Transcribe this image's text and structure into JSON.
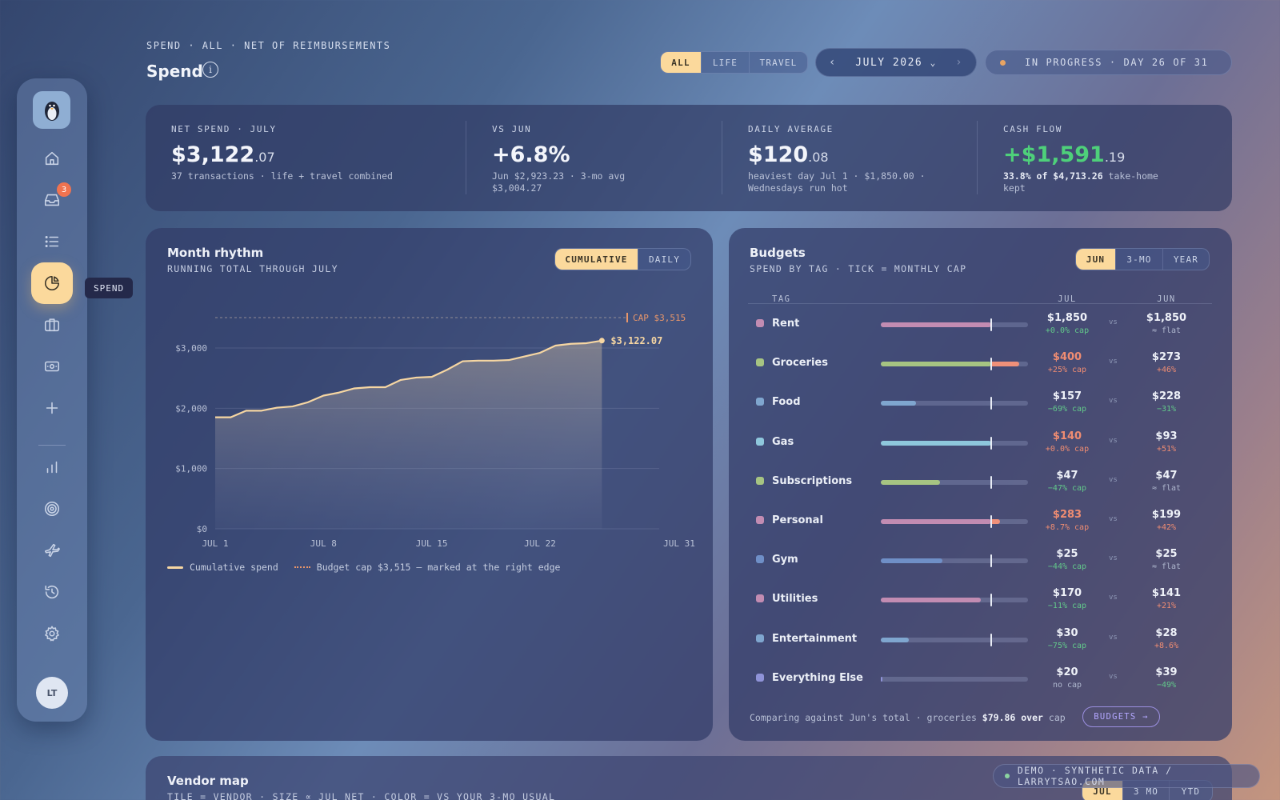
{
  "sidebar": {
    "inbox_badge": "3",
    "tooltip": "SPEND",
    "avatar_initials": "LT",
    "icons": [
      "penguin-logo-icon",
      "home-icon",
      "inbox-icon",
      "list-icon",
      "pie-chart-icon",
      "briefcase-icon",
      "cash-icon",
      "plus-icon",
      "bar-chart-icon",
      "target-icon",
      "plane-icon",
      "history-icon",
      "gear-icon"
    ]
  },
  "header": {
    "eyebrow": "SPEND · ALL · NET OF REIMBURSEMENTS",
    "title": "Spend",
    "info": "i",
    "scope_tabs": [
      "ALL",
      "LIFE",
      "TRAVEL"
    ],
    "scope_selected": "ALL",
    "month_prev": "‹",
    "month": "JULY 2026",
    "month_caret": "⌄",
    "month_next": "›",
    "status": "IN PROGRESS · DAY 26 OF 31"
  },
  "stats": {
    "net": {
      "label": "NET SPEND · JULY",
      "whole": "$3,122",
      "cents": ".07",
      "sub": "37 transactions · life + travel combined"
    },
    "vs": {
      "label": "VS JUN",
      "value": "+6.8%",
      "sub1": "Jun $2,923.23 · 3-mo avg",
      "sub2": "$3,004.27"
    },
    "daily": {
      "label": "DAILY AVERAGE",
      "whole": "$120",
      "cents": ".08",
      "sub1": "heaviest day Jul 1 · $1,850.00 ·",
      "sub2": "Wednesdays run hot"
    },
    "cash": {
      "label": "CASH FLOW",
      "whole": "+$1,591",
      "cents": ".19",
      "sub_bold": "33.8% of $4,713.26",
      "sub_rest": " take-home",
      "sub2": "kept"
    }
  },
  "rhythm": {
    "title": "Month rhythm",
    "subtitle": "RUNNING TOTAL THROUGH JULY",
    "toggle": [
      "CUMULATIVE",
      "DAILY"
    ],
    "toggle_selected": "CUMULATIVE",
    "legend_line": "Cumulative spend",
    "legend_cap": "Budget cap $3,515 — marked at the right edge"
  },
  "chart_data": {
    "type": "area",
    "title": "Month rhythm",
    "subtitle": "RUNNING TOTAL THROUGH JULY",
    "x_tick_labels": [
      "JUL 1",
      "JUL 8",
      "JUL 15",
      "JUL 22",
      "JUL 31"
    ],
    "x_ticks": [
      1,
      8,
      15,
      22,
      31
    ],
    "y_tick_labels": [
      "$0",
      "$1,000",
      "$2,000",
      "$3,000"
    ],
    "y_ticks": [
      0,
      1000,
      2000,
      3000
    ],
    "xlim": [
      1,
      31
    ],
    "ylim": [
      0,
      3515
    ],
    "grid": true,
    "series": [
      {
        "name": "Cumulative spend",
        "x": [
          1,
          2,
          3,
          4,
          5,
          6,
          7,
          8,
          9,
          10,
          11,
          12,
          13,
          14,
          15,
          16,
          17,
          18,
          19,
          20,
          21,
          22,
          23,
          24,
          25,
          26
        ],
        "values": [
          1850,
          1850,
          1960,
          1960,
          2010,
          2030,
          2100,
          2210,
          2260,
          2330,
          2350,
          2350,
          2470,
          2510,
          2520,
          2640,
          2780,
          2790,
          2790,
          2800,
          2860,
          2920,
          3040,
          3070,
          3080,
          3122.07
        ]
      }
    ],
    "cap": {
      "value": 3515,
      "label": "CAP $3,515"
    },
    "end_label": "$3,122.07"
  },
  "budgets": {
    "title": "Budgets",
    "subtitle": "SPEND BY TAG · TICK = MONTHLY CAP",
    "toggle": [
      "JUN",
      "3-MO",
      "YEAR"
    ],
    "toggle_selected": "JUN",
    "col_tag": "TAG",
    "col_jul": "JUL",
    "col_jun": "JUN",
    "vs": "vs",
    "rows": [
      {
        "name": "Rent",
        "color": "#c28cb2",
        "pct": 0.75,
        "over": 0,
        "cap": 0.75,
        "jul": "$1,850",
        "jul_over": false,
        "jul_sub": "+0.0% cap",
        "jul_sub_tone": "green",
        "jun": "$1,850",
        "jun_sub": "≈ flat",
        "jun_sub_tone": "muted"
      },
      {
        "name": "Groceries",
        "color": "#a6c482",
        "pct": 0.75,
        "over": 0.19,
        "cap": 0.75,
        "jul": "$400",
        "jul_over": true,
        "jul_sub": "+25% cap",
        "jul_sub_tone": "red",
        "jun": "$273",
        "jun_sub": "+46%",
        "jun_sub_tone": "red"
      },
      {
        "name": "Food",
        "color": "#7fa6cf",
        "pct": 0.24,
        "over": 0,
        "cap": 0.75,
        "jul": "$157",
        "jul_over": false,
        "jul_sub": "−69% cap",
        "jul_sub_tone": "green",
        "jun": "$228",
        "jun_sub": "−31%",
        "jun_sub_tone": "green"
      },
      {
        "name": "Gas",
        "color": "#8ec7dc",
        "pct": 0.75,
        "over": 0,
        "cap": 0.75,
        "jul": "$140",
        "jul_over": true,
        "jul_sub": "+0.0% cap",
        "jul_sub_tone": "red",
        "jun": "$93",
        "jun_sub": "+51%",
        "jun_sub_tone": "red"
      },
      {
        "name": "Subscriptions",
        "color": "#a6c482",
        "pct": 0.4,
        "over": 0,
        "cap": 0.75,
        "jul": "$47",
        "jul_over": false,
        "jul_sub": "−47% cap",
        "jul_sub_tone": "green",
        "jun": "$47",
        "jun_sub": "≈ flat",
        "jun_sub_tone": "muted"
      },
      {
        "name": "Personal",
        "color": "#c28cb2",
        "pct": 0.75,
        "over": 0.06,
        "cap": 0.75,
        "jul": "$283",
        "jul_over": true,
        "jul_sub": "+8.7% cap",
        "jul_sub_tone": "red",
        "jun": "$199",
        "jun_sub": "+42%",
        "jun_sub_tone": "red"
      },
      {
        "name": "Gym",
        "color": "#6f8fc7",
        "pct": 0.42,
        "over": 0,
        "cap": 0.75,
        "jul": "$25",
        "jul_over": false,
        "jul_sub": "−44% cap",
        "jul_sub_tone": "green",
        "jun": "$25",
        "jun_sub": "≈ flat",
        "jun_sub_tone": "muted"
      },
      {
        "name": "Utilities",
        "color": "#c28cb2",
        "pct": 0.68,
        "over": 0,
        "cap": 0.75,
        "jul": "$170",
        "jul_over": false,
        "jul_sub": "−11% cap",
        "jul_sub_tone": "green",
        "jun": "$141",
        "jun_sub": "+21%",
        "jun_sub_tone": "red"
      },
      {
        "name": "Entertainment",
        "color": "#7fa6cf",
        "pct": 0.19,
        "over": 0,
        "cap": 0.75,
        "jul": "$30",
        "jul_over": false,
        "jul_sub": "−75% cap",
        "jul_sub_tone": "green",
        "jun": "$28",
        "jun_sub": "+8.6%",
        "jun_sub_tone": "red"
      },
      {
        "name": "Everything Else",
        "color": "#8f93d8",
        "pct": 0.01,
        "over": 0,
        "cap": null,
        "jul": "$20",
        "jul_over": false,
        "jul_sub": "no cap",
        "jul_sub_tone": "muted",
        "jun": "$39",
        "jun_sub": "−49%",
        "jun_sub_tone": "green"
      }
    ],
    "footer_pre": "Comparing against Jun's total · groceries ",
    "footer_bold": "$79.86 over",
    "footer_post": " cap",
    "button": "BUDGETS →"
  },
  "vendor": {
    "title": "Vendor map",
    "subtitle": "TILE = VENDOR · SIZE ∝ JUL NET · COLOR = VS YOUR 3-MO USUAL",
    "toggle": [
      "JUL",
      "3 MO",
      "YTD"
    ],
    "toggle_selected": "JUL"
  },
  "demo": "DEMO · SYNTHETIC DATA / LARRYTSAO.COM"
}
